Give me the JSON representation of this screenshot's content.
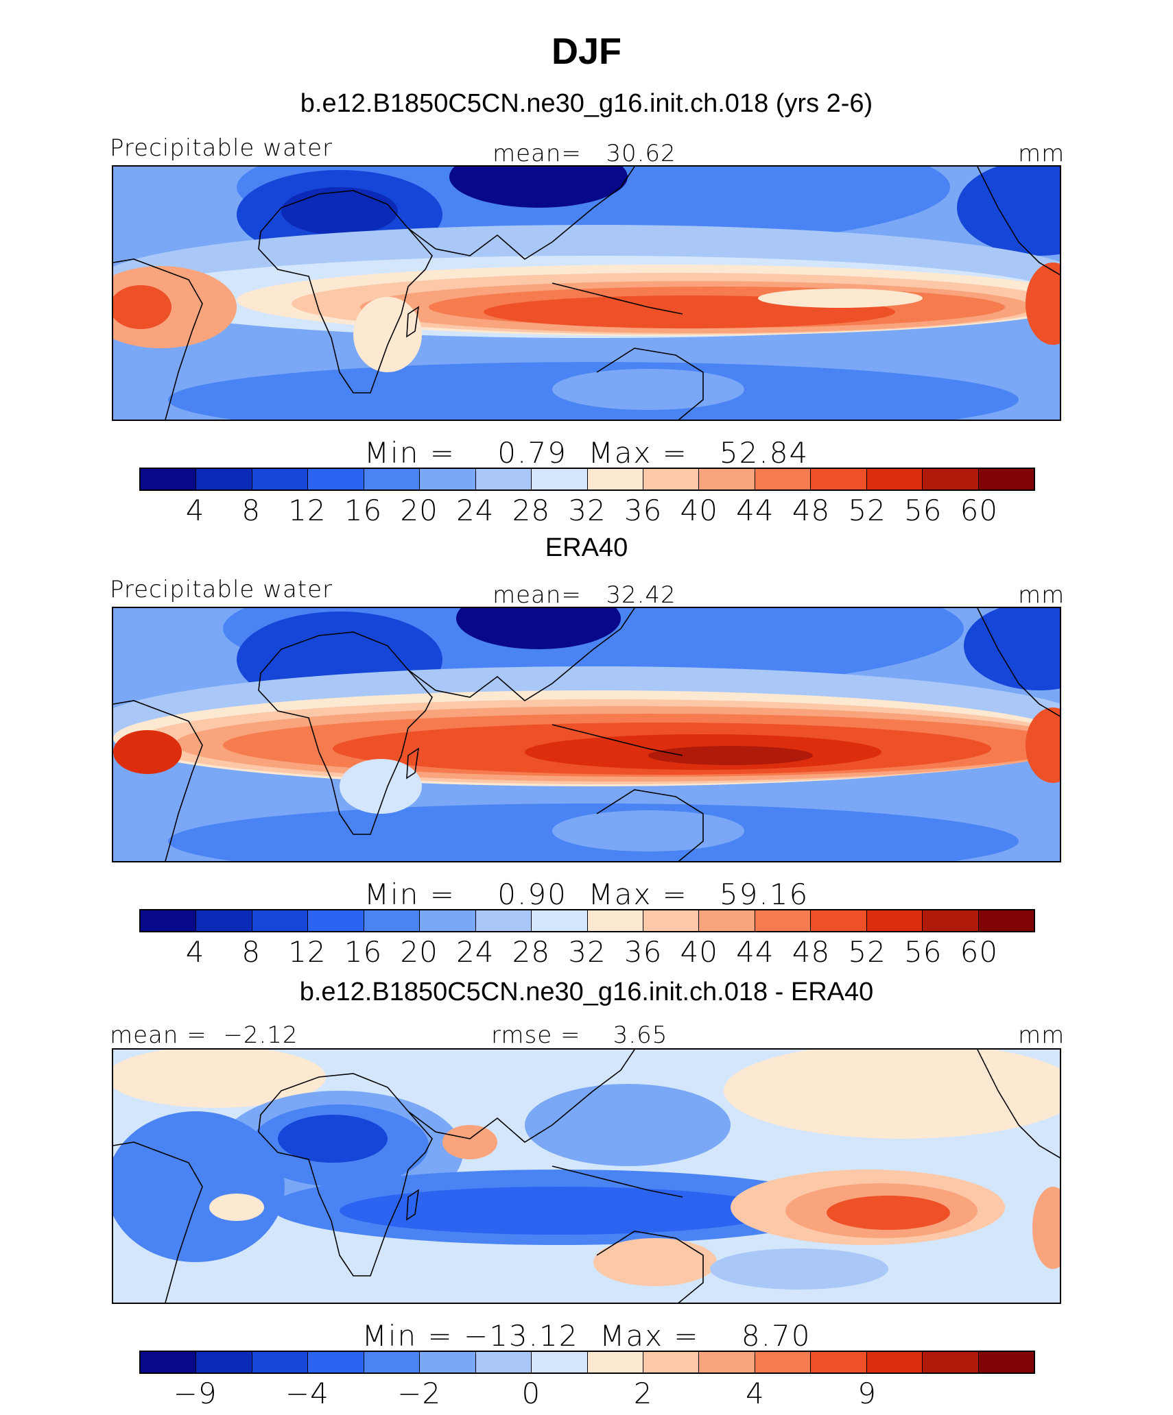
{
  "figure": {
    "title": "DJF",
    "colors": [
      "#08088a",
      "#0c2ab8",
      "#1546d8",
      "#2a64f0",
      "#4a84f4",
      "#7aa8f6",
      "#a9c8f8",
      "#d4e6fb",
      "#fde8d2",
      "#fcc8a8",
      "#f9a47c",
      "#f67c50",
      "#ee5028",
      "#dc2e0c",
      "#b01a0a",
      "#800404"
    ]
  },
  "panels": [
    {
      "id": "model",
      "subtitle": "b.e12.B1850C5CN.ne30_g16.init.ch.018 (yrs 2-6)",
      "left_label": "Precipitable water",
      "center_label": "mean=   30.62",
      "units": "mm",
      "minmax": "Min =    0.79  Max =   52.84",
      "ticks": [
        "4",
        "8",
        "12",
        "16",
        "20",
        "24",
        "28",
        "32",
        "36",
        "40",
        "44",
        "48",
        "52",
        "56",
        "60"
      ]
    },
    {
      "id": "obs",
      "subtitle": "ERA40",
      "left_label": "Precipitable water",
      "center_label": "mean=   32.42",
      "units": "mm",
      "minmax": "Min =    0.90  Max =   59.16",
      "ticks": [
        "4",
        "8",
        "12",
        "16",
        "20",
        "24",
        "28",
        "32",
        "36",
        "40",
        "44",
        "48",
        "52",
        "56",
        "60"
      ]
    },
    {
      "id": "diff",
      "subtitle": "b.e12.B1850C5CN.ne30_g16.init.ch.018 - ERA40",
      "left_label": "mean =  −2.12",
      "center_label": "rmse =    3.65",
      "units": "mm",
      "minmax": "Min = −13.12  Max =    8.70",
      "ticks": [
        "−9",
        "",
        "−4",
        "",
        "−2",
        "",
        "0",
        "",
        "2",
        "",
        "4",
        "",
        "9",
        "",
        ""
      ]
    }
  ],
  "chart_data": [
    {
      "type": "heatmap",
      "title": "DJF",
      "subtitle": "b.e12.B1850C5CN.ne30_g16.init.ch.018 (yrs 2-6)",
      "variable": "Precipitable water",
      "units": "mm",
      "mean": 30.62,
      "min": 0.79,
      "max": 52.84,
      "contour_levels": [
        4,
        8,
        12,
        16,
        20,
        24,
        28,
        32,
        36,
        40,
        44,
        48,
        52,
        56,
        60
      ]
    },
    {
      "type": "heatmap",
      "subtitle": "ERA40",
      "variable": "Precipitable water",
      "units": "mm",
      "mean": 32.42,
      "min": 0.9,
      "max": 59.16,
      "contour_levels": [
        4,
        8,
        12,
        16,
        20,
        24,
        28,
        32,
        36,
        40,
        44,
        48,
        52,
        56,
        60
      ]
    },
    {
      "type": "heatmap",
      "subtitle": "b.e12.B1850C5CN.ne30_g16.init.ch.018 - ERA40",
      "units": "mm",
      "mean": -2.12,
      "rmse": 3.65,
      "min": -13.12,
      "max": 8.7,
      "labeled_levels": [
        -9,
        -4,
        -2,
        0,
        2,
        4,
        9
      ]
    }
  ]
}
